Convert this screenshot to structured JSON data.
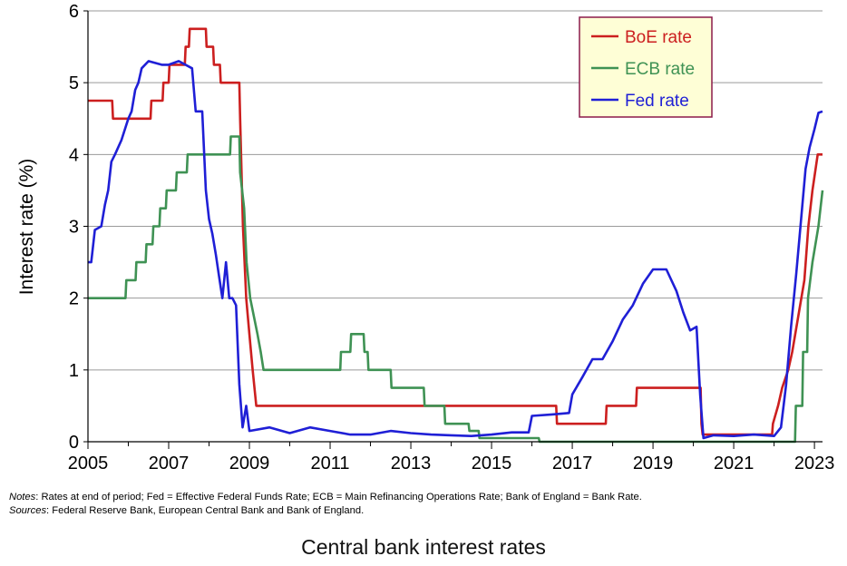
{
  "chart_data": {
    "type": "line",
    "title": "Central bank interest rates",
    "xlabel": "",
    "ylabel": "Interest rate (%)",
    "xlim": [
      2005,
      2023.2
    ],
    "ylim": [
      0,
      6
    ],
    "x_tick_labels": [
      "2005",
      "2007",
      "2009",
      "2011",
      "2013",
      "2015",
      "2017",
      "2019",
      "2021",
      "2023"
    ],
    "y_tick_labels": [
      "0",
      "1",
      "2",
      "3",
      "4",
      "5",
      "6"
    ],
    "grid": "horizontal",
    "legend_position": "top-right",
    "series": [
      {
        "name": "BoE rate",
        "color": "#cc1f1f",
        "points": [
          [
            2005.0,
            4.75
          ],
          [
            2005.6,
            4.75
          ],
          [
            2005.62,
            4.5
          ],
          [
            2006.55,
            4.5
          ],
          [
            2006.57,
            4.75
          ],
          [
            2006.85,
            4.75
          ],
          [
            2006.87,
            5.0
          ],
          [
            2007.0,
            5.0
          ],
          [
            2007.02,
            5.25
          ],
          [
            2007.4,
            5.25
          ],
          [
            2007.42,
            5.5
          ],
          [
            2007.5,
            5.5
          ],
          [
            2007.52,
            5.75
          ],
          [
            2007.92,
            5.75
          ],
          [
            2007.94,
            5.5
          ],
          [
            2008.1,
            5.5
          ],
          [
            2008.12,
            5.25
          ],
          [
            2008.27,
            5.25
          ],
          [
            2008.29,
            5.0
          ],
          [
            2008.75,
            5.0
          ],
          [
            2008.77,
            4.5
          ],
          [
            2008.84,
            3.0
          ],
          [
            2008.92,
            2.0
          ],
          [
            2009.0,
            1.5
          ],
          [
            2009.08,
            1.0
          ],
          [
            2009.17,
            0.5
          ],
          [
            2016.6,
            0.5
          ],
          [
            2016.62,
            0.25
          ],
          [
            2017.83,
            0.25
          ],
          [
            2017.85,
            0.5
          ],
          [
            2018.58,
            0.5
          ],
          [
            2018.6,
            0.75
          ],
          [
            2020.18,
            0.75
          ],
          [
            2020.2,
            0.25
          ],
          [
            2020.23,
            0.1
          ],
          [
            2021.95,
            0.1
          ],
          [
            2021.97,
            0.25
          ],
          [
            2022.1,
            0.5
          ],
          [
            2022.2,
            0.75
          ],
          [
            2022.35,
            1.0
          ],
          [
            2022.45,
            1.25
          ],
          [
            2022.6,
            1.75
          ],
          [
            2022.75,
            2.25
          ],
          [
            2022.85,
            3.0
          ],
          [
            2022.95,
            3.5
          ],
          [
            2023.08,
            4.0
          ],
          [
            2023.2,
            4.0
          ]
        ]
      },
      {
        "name": "ECB rate",
        "color": "#3f9254",
        "points": [
          [
            2005.0,
            2.0
          ],
          [
            2005.93,
            2.0
          ],
          [
            2005.95,
            2.25
          ],
          [
            2006.18,
            2.25
          ],
          [
            2006.2,
            2.5
          ],
          [
            2006.43,
            2.5
          ],
          [
            2006.45,
            2.75
          ],
          [
            2006.6,
            2.75
          ],
          [
            2006.62,
            3.0
          ],
          [
            2006.77,
            3.0
          ],
          [
            2006.79,
            3.25
          ],
          [
            2006.93,
            3.25
          ],
          [
            2006.95,
            3.5
          ],
          [
            2007.18,
            3.5
          ],
          [
            2007.2,
            3.75
          ],
          [
            2007.45,
            3.75
          ],
          [
            2007.47,
            4.0
          ],
          [
            2008.52,
            4.0
          ],
          [
            2008.54,
            4.25
          ],
          [
            2008.75,
            4.25
          ],
          [
            2008.77,
            3.75
          ],
          [
            2008.87,
            3.25
          ],
          [
            2008.93,
            2.5
          ],
          [
            2009.02,
            2.0
          ],
          [
            2009.2,
            1.5
          ],
          [
            2009.28,
            1.25
          ],
          [
            2009.35,
            1.0
          ],
          [
            2011.25,
            1.0
          ],
          [
            2011.27,
            1.25
          ],
          [
            2011.5,
            1.25
          ],
          [
            2011.52,
            1.5
          ],
          [
            2011.83,
            1.5
          ],
          [
            2011.85,
            1.25
          ],
          [
            2011.93,
            1.25
          ],
          [
            2011.95,
            1.0
          ],
          [
            2012.5,
            1.0
          ],
          [
            2012.52,
            0.75
          ],
          [
            2013.32,
            0.75
          ],
          [
            2013.34,
            0.5
          ],
          [
            2013.83,
            0.5
          ],
          [
            2013.85,
            0.25
          ],
          [
            2014.43,
            0.25
          ],
          [
            2014.45,
            0.15
          ],
          [
            2014.68,
            0.15
          ],
          [
            2014.7,
            0.05
          ],
          [
            2016.17,
            0.05
          ],
          [
            2016.19,
            0.0
          ],
          [
            2022.52,
            0.0
          ],
          [
            2022.54,
            0.5
          ],
          [
            2022.7,
            0.5
          ],
          [
            2022.72,
            1.25
          ],
          [
            2022.82,
            1.25
          ],
          [
            2022.84,
            2.0
          ],
          [
            2022.95,
            2.5
          ],
          [
            2023.1,
            3.0
          ],
          [
            2023.2,
            3.5
          ]
        ]
      },
      {
        "name": "Fed rate",
        "color": "#1f1fd6",
        "points": [
          [
            2005.0,
            2.5
          ],
          [
            2005.08,
            2.5
          ],
          [
            2005.17,
            2.95
          ],
          [
            2005.33,
            3.0
          ],
          [
            2005.42,
            3.3
          ],
          [
            2005.5,
            3.5
          ],
          [
            2005.58,
            3.9
          ],
          [
            2005.67,
            4.0
          ],
          [
            2005.83,
            4.2
          ],
          [
            2006.0,
            4.5
          ],
          [
            2006.08,
            4.6
          ],
          [
            2006.17,
            4.9
          ],
          [
            2006.25,
            5.0
          ],
          [
            2006.33,
            5.2
          ],
          [
            2006.5,
            5.3
          ],
          [
            2006.83,
            5.25
          ],
          [
            2007.0,
            5.25
          ],
          [
            2007.25,
            5.3
          ],
          [
            2007.58,
            5.2
          ],
          [
            2007.67,
            4.6
          ],
          [
            2007.83,
            4.6
          ],
          [
            2007.92,
            3.5
          ],
          [
            2008.0,
            3.1
          ],
          [
            2008.08,
            2.9
          ],
          [
            2008.17,
            2.6
          ],
          [
            2008.25,
            2.3
          ],
          [
            2008.33,
            2.0
          ],
          [
            2008.42,
            2.5
          ],
          [
            2008.5,
            2.0
          ],
          [
            2008.58,
            2.0
          ],
          [
            2008.67,
            1.9
          ],
          [
            2008.75,
            0.8
          ],
          [
            2008.83,
            0.2
          ],
          [
            2008.92,
            0.5
          ],
          [
            2009.0,
            0.15
          ],
          [
            2009.5,
            0.2
          ],
          [
            2010.0,
            0.12
          ],
          [
            2010.5,
            0.2
          ],
          [
            2011.0,
            0.15
          ],
          [
            2011.5,
            0.1
          ],
          [
            2012.0,
            0.1
          ],
          [
            2012.5,
            0.15
          ],
          [
            2013.0,
            0.12
          ],
          [
            2013.5,
            0.1
          ],
          [
            2014.0,
            0.09
          ],
          [
            2014.5,
            0.08
          ],
          [
            2015.0,
            0.1
          ],
          [
            2015.5,
            0.13
          ],
          [
            2015.92,
            0.13
          ],
          [
            2016.0,
            0.36
          ],
          [
            2016.5,
            0.38
          ],
          [
            2016.92,
            0.4
          ],
          [
            2017.0,
            0.66
          ],
          [
            2017.25,
            0.9
          ],
          [
            2017.5,
            1.15
          ],
          [
            2017.75,
            1.15
          ],
          [
            2018.0,
            1.4
          ],
          [
            2018.25,
            1.7
          ],
          [
            2018.5,
            1.9
          ],
          [
            2018.75,
            2.2
          ],
          [
            2019.0,
            2.4
          ],
          [
            2019.33,
            2.4
          ],
          [
            2019.58,
            2.1
          ],
          [
            2019.75,
            1.8
          ],
          [
            2019.92,
            1.55
          ],
          [
            2020.08,
            1.6
          ],
          [
            2020.17,
            0.65
          ],
          [
            2020.25,
            0.05
          ],
          [
            2020.5,
            0.09
          ],
          [
            2021.0,
            0.08
          ],
          [
            2021.5,
            0.1
          ],
          [
            2022.0,
            0.08
          ],
          [
            2022.17,
            0.2
          ],
          [
            2022.3,
            0.8
          ],
          [
            2022.42,
            1.6
          ],
          [
            2022.55,
            2.35
          ],
          [
            2022.67,
            3.1
          ],
          [
            2022.78,
            3.8
          ],
          [
            2022.88,
            4.1
          ],
          [
            2023.0,
            4.35
          ],
          [
            2023.1,
            4.58
          ],
          [
            2023.2,
            4.6
          ]
        ]
      }
    ]
  },
  "notes": {
    "label": "Notes",
    "text": ": Rates at end of period; Fed = Effective Federal Funds Rate; ECB = Main Refinancing Operations Rate; Bank of England = Bank Rate."
  },
  "sources": {
    "label": "Sources",
    "text": ": Federal Reserve Bank, European Central Bank and Bank of England."
  },
  "caption": "Central bank interest rates",
  "colors": {
    "legend_bg": "#fefed6",
    "legend_border": "#8b1a4a",
    "grid": "#9a9a9a"
  }
}
